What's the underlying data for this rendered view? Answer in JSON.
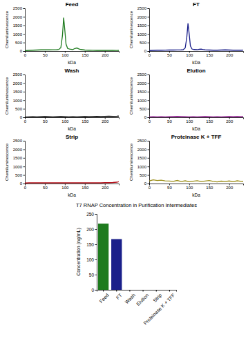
{
  "chart_data": [
    {
      "type": "line",
      "title": "Feed",
      "x_label": "kDa",
      "y_label": "Chemiluminescence",
      "color": "#1e7b1e",
      "x": [
        0,
        10,
        20,
        30,
        40,
        50,
        60,
        70,
        80,
        85,
        90,
        94,
        97,
        100,
        103,
        107,
        112,
        120,
        125,
        130,
        135,
        140,
        150,
        160,
        170,
        180,
        190,
        200,
        210,
        220,
        230,
        235
      ],
      "values": [
        20,
        40,
        50,
        60,
        70,
        75,
        70,
        75,
        80,
        95,
        200,
        900,
        1950,
        1200,
        400,
        150,
        120,
        90,
        150,
        180,
        130,
        90,
        60,
        50,
        45,
        40,
        40,
        40,
        40,
        40,
        35,
        40
      ],
      "xlim": [
        0,
        235
      ],
      "ylim": [
        0,
        2500
      ],
      "xticks": [
        0,
        50,
        100,
        150,
        200
      ],
      "yticks": [
        0,
        500,
        1000,
        1500,
        2000,
        2500
      ]
    },
    {
      "type": "line",
      "title": "FT",
      "x_label": "kDa",
      "y_label": "Chemiluminescence",
      "color": "#1a1f8a",
      "x": [
        0,
        10,
        20,
        30,
        40,
        50,
        60,
        70,
        80,
        85,
        90,
        94,
        97,
        100,
        103,
        107,
        112,
        120,
        125,
        130,
        135,
        140,
        150,
        160,
        170,
        180,
        190,
        200,
        210,
        220,
        230,
        235
      ],
      "values": [
        30,
        40,
        50,
        50,
        55,
        60,
        60,
        65,
        70,
        80,
        180,
        800,
        1620,
        1000,
        300,
        120,
        90,
        80,
        100,
        110,
        90,
        70,
        60,
        50,
        50,
        60,
        70,
        60,
        50,
        50,
        50,
        55
      ],
      "xlim": [
        0,
        235
      ],
      "ylim": [
        0,
        2500
      ],
      "xticks": [
        0,
        50,
        100,
        150,
        200
      ],
      "yticks": [
        0,
        500,
        1000,
        1500,
        2000,
        2500
      ]
    },
    {
      "type": "line",
      "title": "Wash",
      "x_label": "kDa",
      "y_label": "Chemiluminescence",
      "color": "#111111",
      "x": [
        0,
        10,
        20,
        30,
        40,
        50,
        60,
        70,
        80,
        90,
        100,
        110,
        120,
        130,
        140,
        150,
        160,
        170,
        180,
        190,
        200,
        210,
        220,
        230,
        235
      ],
      "values": [
        10,
        20,
        30,
        20,
        30,
        40,
        30,
        20,
        30,
        40,
        30,
        20,
        30,
        20,
        30,
        40,
        30,
        40,
        50,
        40,
        50,
        60,
        50,
        60,
        70
      ],
      "xlim": [
        0,
        235
      ],
      "ylim": [
        0,
        2500
      ],
      "xticks": [
        0,
        50,
        100,
        150,
        200
      ],
      "yticks": [
        0,
        500,
        1000,
        1500,
        2000,
        2500
      ]
    },
    {
      "type": "line",
      "title": "Elution",
      "x_label": "kDa",
      "y_label": "Chemiluminescence",
      "color": "#8e1b8e",
      "x": [
        0,
        10,
        20,
        30,
        40,
        50,
        60,
        70,
        80,
        90,
        100,
        110,
        120,
        130,
        140,
        150,
        160,
        170,
        180,
        190,
        200,
        210,
        220,
        230,
        235
      ],
      "values": [
        20,
        30,
        20,
        30,
        20,
        30,
        40,
        50,
        40,
        30,
        20,
        30,
        20,
        30,
        40,
        30,
        20,
        30,
        20,
        30,
        40,
        30,
        40,
        30,
        40
      ],
      "xlim": [
        0,
        235
      ],
      "ylim": [
        0,
        2500
      ],
      "xticks": [
        0,
        50,
        100,
        150,
        200
      ],
      "yticks": [
        0,
        500,
        1000,
        1500,
        2000,
        2500
      ]
    },
    {
      "type": "line",
      "title": "Strip",
      "x_label": "kDa",
      "y_label": "Chemiluminescence",
      "color": "#b5141e",
      "x": [
        0,
        10,
        20,
        30,
        40,
        50,
        60,
        70,
        80,
        90,
        100,
        110,
        120,
        130,
        140,
        150,
        160,
        170,
        180,
        190,
        200,
        210,
        220,
        230,
        235
      ],
      "values": [
        30,
        40,
        40,
        40,
        40,
        40,
        40,
        40,
        40,
        40,
        40,
        40,
        40,
        40,
        40,
        40,
        40,
        40,
        40,
        40,
        50,
        50,
        60,
        80,
        110
      ],
      "xlim": [
        0,
        235
      ],
      "ylim": [
        0,
        2500
      ],
      "xticks": [
        0,
        50,
        100,
        150,
        200
      ],
      "yticks": [
        0,
        500,
        1000,
        1500,
        2000,
        2500
      ]
    },
    {
      "type": "line",
      "title": "Proteinase K + TFF",
      "x_label": "kDa",
      "y_label": "Chemiluminescence",
      "color": "#9c8f1a",
      "x": [
        0,
        10,
        20,
        30,
        40,
        50,
        60,
        70,
        80,
        90,
        100,
        110,
        120,
        130,
        140,
        150,
        160,
        170,
        180,
        190,
        200,
        210,
        220,
        230,
        235
      ],
      "values": [
        150,
        220,
        180,
        200,
        160,
        150,
        130,
        180,
        120,
        160,
        110,
        140,
        170,
        120,
        150,
        180,
        130,
        100,
        140,
        120,
        150,
        110,
        160,
        130,
        120
      ],
      "xlim": [
        0,
        235
      ],
      "ylim": [
        0,
        2500
      ],
      "xticks": [
        0,
        50,
        100,
        150,
        200
      ],
      "yticks": [
        0,
        500,
        1000,
        1500,
        2000,
        2500
      ]
    },
    {
      "type": "bar",
      "title": "T7 RNAP Concentration in Purification Intermediates",
      "y_label": "Concentration (ng/mL)",
      "categories": [
        "Feed",
        "FT",
        "Wash",
        "Elution",
        "Strip",
        "Proteinase K + TFF"
      ],
      "values": [
        218,
        167,
        0,
        0,
        0,
        0
      ],
      "colors": [
        "#1e7b1e",
        "#1a1f8a",
        "#111111",
        "#8e1b8e",
        "#b5141e",
        "#9c8f1a"
      ],
      "ylim": [
        0,
        250
      ],
      "yticks": [
        0,
        50,
        100,
        150,
        200,
        250
      ]
    }
  ]
}
